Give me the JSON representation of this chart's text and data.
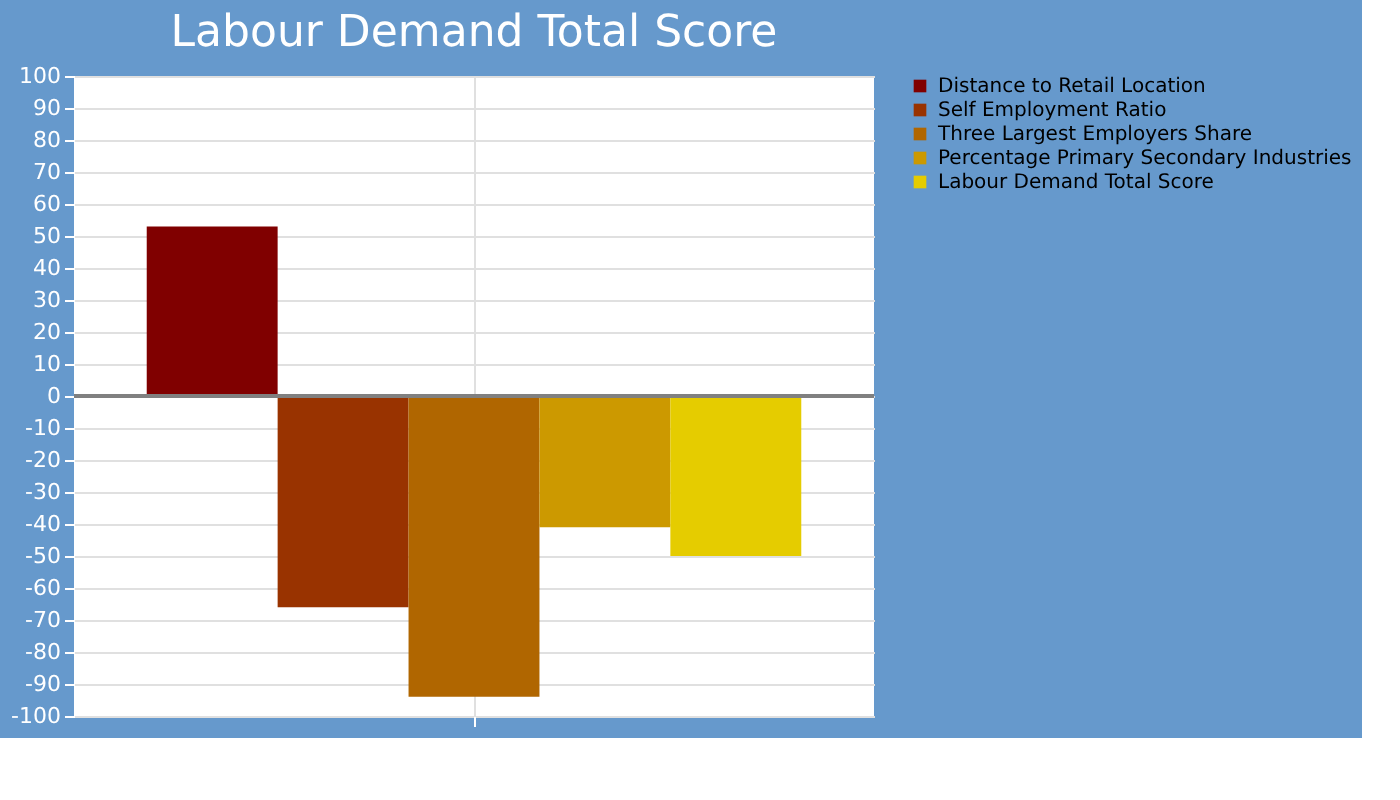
{
  "chart_data": {
    "type": "bar",
    "title": "Labour Demand Total Score",
    "categories": [
      null
    ],
    "series": [
      {
        "name": "Distance to Retail Location",
        "color": "#800000",
        "values": [
          53
        ]
      },
      {
        "name": "Self Employment Ratio",
        "color": "#993300",
        "values": [
          -66
        ]
      },
      {
        "name": "Three Largest Employers Share",
        "color": "#b06600",
        "values": [
          -94
        ]
      },
      {
        "name": "Percentage Primary Secondary Industries",
        "color": "#cc9900",
        "values": [
          -41
        ]
      },
      {
        "name": "Labour Demand Total Score",
        "color": "#e5cc00",
        "values": [
          -50
        ]
      }
    ],
    "ylim": [
      -100,
      100
    ],
    "yticks": [
      -100,
      -90,
      -80,
      -70,
      -60,
      -50,
      -40,
      -30,
      -20,
      -10,
      0,
      10,
      20,
      30,
      40,
      50,
      60,
      70,
      80,
      90,
      100
    ],
    "ref_lines": [
      {
        "axis": "y",
        "value": 0,
        "color": "#808080"
      }
    ],
    "grid": true,
    "legend": "right"
  }
}
